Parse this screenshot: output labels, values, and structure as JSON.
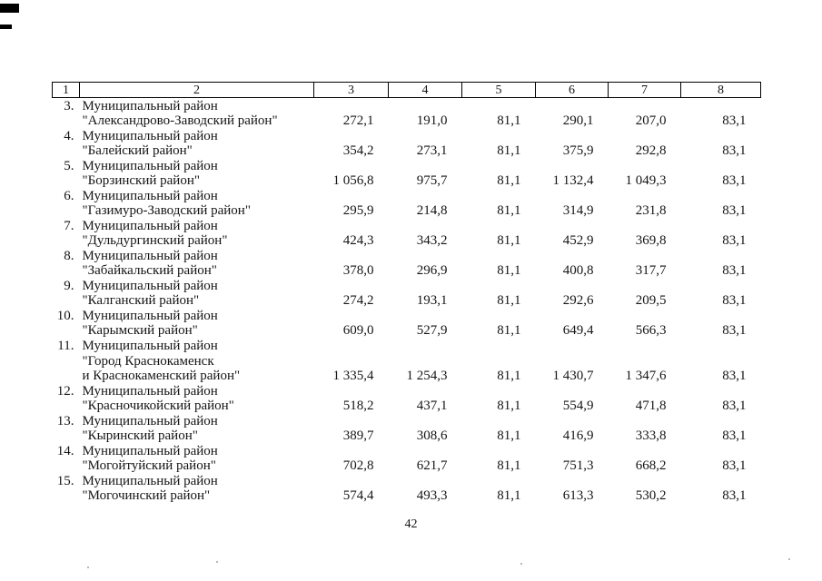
{
  "page": {
    "number": "42"
  },
  "table": {
    "header": [
      "1",
      "2",
      "3",
      "4",
      "5",
      "6",
      "7",
      "8"
    ],
    "rows": [
      {
        "num": "3.",
        "name_lines": [
          "Муниципальный район",
          "\"Александрово-Заводский район\""
        ],
        "values": [
          "272,1",
          "191,0",
          "81,1",
          "290,1",
          "207,0",
          "83,1"
        ]
      },
      {
        "num": "4.",
        "name_lines": [
          "Муниципальный район",
          "\"Балейский район\""
        ],
        "values": [
          "354,2",
          "273,1",
          "81,1",
          "375,9",
          "292,8",
          "83,1"
        ]
      },
      {
        "num": "5.",
        "name_lines": [
          "Муниципальный район",
          "\"Борзинский район\""
        ],
        "values": [
          "1 056,8",
          "975,7",
          "81,1",
          "1 132,4",
          "1 049,3",
          "83,1"
        ]
      },
      {
        "num": "6.",
        "name_lines": [
          "Муниципальный район",
          "\"Газимуро-Заводский район\""
        ],
        "values": [
          "295,9",
          "214,8",
          "81,1",
          "314,9",
          "231,8",
          "83,1"
        ]
      },
      {
        "num": "7.",
        "name_lines": [
          "Муниципальный район",
          "\"Дульдургинский район\""
        ],
        "values": [
          "424,3",
          "343,2",
          "81,1",
          "452,9",
          "369,8",
          "83,1"
        ]
      },
      {
        "num": "8.",
        "name_lines": [
          "Муниципальный район",
          "\"Забайкальский район\""
        ],
        "values": [
          "378,0",
          "296,9",
          "81,1",
          "400,8",
          "317,7",
          "83,1"
        ]
      },
      {
        "num": "9.",
        "name_lines": [
          "Муниципальный район",
          "\"Калганский район\""
        ],
        "values": [
          "274,2",
          "193,1",
          "81,1",
          "292,6",
          "209,5",
          "83,1"
        ]
      },
      {
        "num": "10.",
        "name_lines": [
          "Муниципальный район",
          "\"Карымский район\""
        ],
        "values": [
          "609,0",
          "527,9",
          "81,1",
          "649,4",
          "566,3",
          "83,1"
        ]
      },
      {
        "num": "11.",
        "name_lines": [
          "Муниципальный район",
          "\"Город Краснокаменск",
          "и Краснокаменский район\""
        ],
        "values": [
          "1 335,4",
          "1 254,3",
          "81,1",
          "1 430,7",
          "1 347,6",
          "83,1"
        ]
      },
      {
        "num": "12.",
        "name_lines": [
          "Муниципальный район",
          "\"Красночикойский район\""
        ],
        "values": [
          "518,2",
          "437,1",
          "81,1",
          "554,9",
          "471,8",
          "83,1"
        ]
      },
      {
        "num": "13.",
        "name_lines": [
          "Муниципальный район",
          "\"Кыринский район\""
        ],
        "values": [
          "389,7",
          "308,6",
          "81,1",
          "416,9",
          "333,8",
          "83,1"
        ]
      },
      {
        "num": "14.",
        "name_lines": [
          "Муниципальный район",
          "\"Могойтуйский район\""
        ],
        "values": [
          "702,8",
          "621,7",
          "81,1",
          "751,3",
          "668,2",
          "83,1"
        ]
      },
      {
        "num": "15.",
        "name_lines": [
          "Муниципальный район",
          "\"Могочинский район\""
        ],
        "values": [
          "574,4",
          "493,3",
          "81,1",
          "613,3",
          "530,2",
          "83,1"
        ]
      }
    ]
  }
}
